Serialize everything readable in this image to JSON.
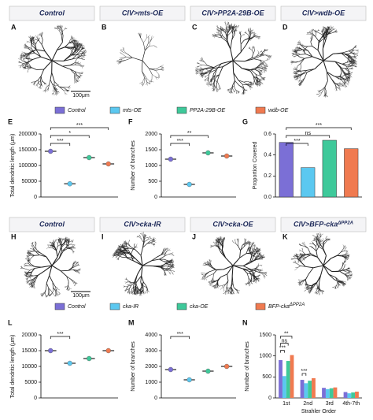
{
  "top": {
    "headers": [
      {
        "text": "Control"
      },
      {
        "text": "CIV>mts-OE"
      },
      {
        "text": "CIV>PP2A-29B-OE"
      },
      {
        "text": "CIV>wdb-OE"
      }
    ],
    "panels": [
      "A",
      "B",
      "C",
      "D"
    ],
    "scale_bar": "100μm",
    "legend": [
      {
        "text": "Control",
        "color": "#7b6fd6"
      },
      {
        "text": "mts-OE",
        "color": "#5bc8f0"
      },
      {
        "text": "PP2A-29B-OE",
        "color": "#3ec99a"
      },
      {
        "text": "wdb-OE",
        "color": "#f07a50"
      }
    ]
  },
  "bottom": {
    "headers": [
      {
        "text": "Control"
      },
      {
        "text": "CIV>cka-IR"
      },
      {
        "text": "CIV>cka-OE"
      },
      {
        "text": "CIV>BFP-cka",
        "sup": "ΔPP2A"
      }
    ],
    "panels": [
      "H",
      "I",
      "J",
      "K"
    ],
    "scale_bar": "100μm"
  },
  "chart_data": [
    {
      "panel": "E",
      "type": "dot",
      "ylabel": "Total dendritic length (μm)",
      "values": [
        145000,
        42000,
        125000,
        105000
      ],
      "colors": [
        "#7b6fd6",
        "#5bc8f0",
        "#3ec99a",
        "#f07a50"
      ],
      "ylim": [
        0,
        200000
      ],
      "yticks": [
        0,
        50000,
        100000,
        150000,
        200000
      ],
      "annotations": [
        {
          "text": "***",
          "pair": [
            0,
            3
          ]
        },
        {
          "text": "*",
          "pair": [
            0,
            2
          ]
        },
        {
          "text": "***",
          "pair": [
            0,
            1
          ]
        }
      ]
    },
    {
      "panel": "F",
      "type": "dot",
      "ylabel": "Number of branches",
      "values": [
        1200,
        400,
        1400,
        1300
      ],
      "colors": [
        "#7b6fd6",
        "#5bc8f0",
        "#3ec99a",
        "#f07a50"
      ],
      "ylim": [
        0,
        2000
      ],
      "yticks": [
        0,
        500,
        1000,
        1500,
        2000
      ],
      "annotations": [
        {
          "text": "**",
          "pair": [
            0,
            2
          ]
        },
        {
          "text": "***",
          "pair": [
            0,
            1
          ]
        }
      ]
    },
    {
      "panel": "G",
      "type": "bar",
      "ylabel": "Proportion Covered",
      "values": [
        0.52,
        0.28,
        0.54,
        0.46
      ],
      "colors": [
        "#7b6fd6",
        "#5bc8f0",
        "#3ec99a",
        "#f07a50"
      ],
      "ylim": [
        0,
        0.6
      ],
      "yticks": [
        {
          "value": 0,
          "label": "0.0"
        },
        0.2,
        0.4,
        0.6
      ],
      "annotations": [
        {
          "text": "***",
          "pair": [
            0,
            3
          ]
        },
        {
          "text": "ns",
          "pair": [
            0,
            2
          ]
        },
        {
          "text": "***",
          "pair": [
            0,
            1
          ]
        }
      ]
    },
    {
      "panel": "L",
      "type": "dot",
      "ylabel": "Total dendritic length (μm)",
      "values": [
        15000,
        11000,
        12500,
        15000
      ],
      "colors": [
        "#7b6fd6",
        "#5bc8f0",
        "#3ec99a",
        "#f07a50"
      ],
      "ylim": [
        0,
        20000
      ],
      "yticks": [
        0,
        5000,
        10000,
        15000,
        20000
      ],
      "annotations": [
        {
          "text": "***",
          "pair": [
            0,
            1
          ]
        }
      ]
    },
    {
      "panel": "M",
      "type": "dot",
      "ylabel": "Number of branches",
      "values": [
        1800,
        1150,
        1700,
        2000
      ],
      "colors": [
        "#7b6fd6",
        "#5bc8f0",
        "#3ec99a",
        "#f07a50"
      ],
      "ylim": [
        0,
        4000
      ],
      "yticks": [
        0,
        1000,
        2000,
        3000,
        4000
      ],
      "annotations": [
        {
          "text": "***",
          "pair": [
            0,
            1
          ]
        }
      ]
    },
    {
      "panel": "N",
      "type": "grouped_bar",
      "ylabel": "Number of branches",
      "xlabel": "Strahler Order",
      "categories": [
        "1st",
        "2nd",
        "3rd",
        "4th-7th"
      ],
      "ylim": [
        0,
        1500
      ],
      "yticks": [
        0,
        500,
        1000,
        1500
      ],
      "series": [
        {
          "name": "Control",
          "color": "#7b6fd6",
          "values": [
            900,
            430,
            240,
            140
          ]
        },
        {
          "name": "cka-IR",
          "color": "#5bc8f0",
          "values": [
            520,
            350,
            210,
            110
          ]
        },
        {
          "name": "cka-OE",
          "color": "#3ec99a",
          "values": [
            880,
            410,
            230,
            130
          ]
        },
        {
          "name": "BFP-cka",
          "name_sup": "ΔPP2A",
          "color": "#f07a50",
          "values": [
            1020,
            470,
            250,
            150
          ]
        }
      ],
      "annotations": [
        {
          "text": "**",
          "category": 0,
          "pair": [
            0,
            3
          ]
        },
        {
          "text": "ns",
          "category": 0,
          "pair": [
            0,
            2
          ]
        },
        {
          "text": "***",
          "category": 0,
          "pair": [
            0,
            1
          ]
        },
        {
          "text": "***",
          "category": 1,
          "pair": [
            0,
            1
          ]
        }
      ]
    }
  ]
}
